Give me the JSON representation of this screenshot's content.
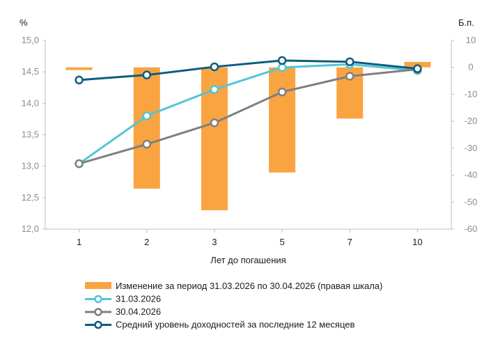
{
  "chart_data": {
    "type": "bar+line",
    "categories": [
      "1",
      "2",
      "3",
      "5",
      "7",
      "10"
    ],
    "xlabel": "Лет до погашения",
    "left_axis": {
      "unit": "%",
      "ylim": [
        12.0,
        15.0
      ],
      "ticks": [
        "12,0",
        "12,5",
        "13,0",
        "13,5",
        "14,0",
        "14,5",
        "15,0"
      ]
    },
    "right_axis": {
      "unit": "Б.п.",
      "ylim": [
        -60,
        10
      ],
      "ticks": [
        "-60",
        "-50",
        "-40",
        "-30",
        "-20",
        "-10",
        "0",
        "10"
      ]
    },
    "bars": {
      "name": "Изменение за период 31.03.2026 по 30.04.2026 (правая шкала)",
      "axis": "right",
      "color": "#f9a441",
      "values": [
        -1,
        -45,
        -53,
        -39,
        -19,
        2
      ]
    },
    "series": [
      {
        "name": "31.03.2026",
        "axis": "left",
        "color": "#53c5d6",
        "values": [
          13.04,
          13.8,
          14.22,
          14.57,
          14.62,
          14.52
        ]
      },
      {
        "name": "30.04.2026",
        "axis": "left",
        "color": "#7f7f7f",
        "values": [
          13.04,
          13.35,
          13.69,
          14.18,
          14.43,
          14.54
        ]
      },
      {
        "name": "Средний уровень доходностей за последние 12 месяцев",
        "axis": "left",
        "color": "#0b5d7e",
        "values": [
          14.37,
          14.45,
          14.58,
          14.68,
          14.66,
          14.55
        ]
      }
    ],
    "grid": false,
    "legend_position": "bottom"
  }
}
